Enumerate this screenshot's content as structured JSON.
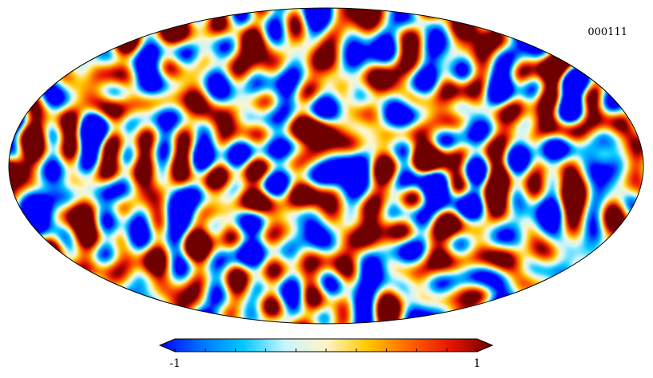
{
  "map": {
    "tag": "000111",
    "projection": "mollweide",
    "colormap": [
      "#0000ff",
      "#0073ff",
      "#00c8ff",
      "#c8f5ff",
      "#fff5c8",
      "#ffc800",
      "#ff6400",
      "#e61400",
      "#6e0000"
    ]
  },
  "colorbar": {
    "min_label": "-1",
    "max_label": "1",
    "min": -1,
    "max": 1,
    "tick_count": 11,
    "extend": "both"
  }
}
